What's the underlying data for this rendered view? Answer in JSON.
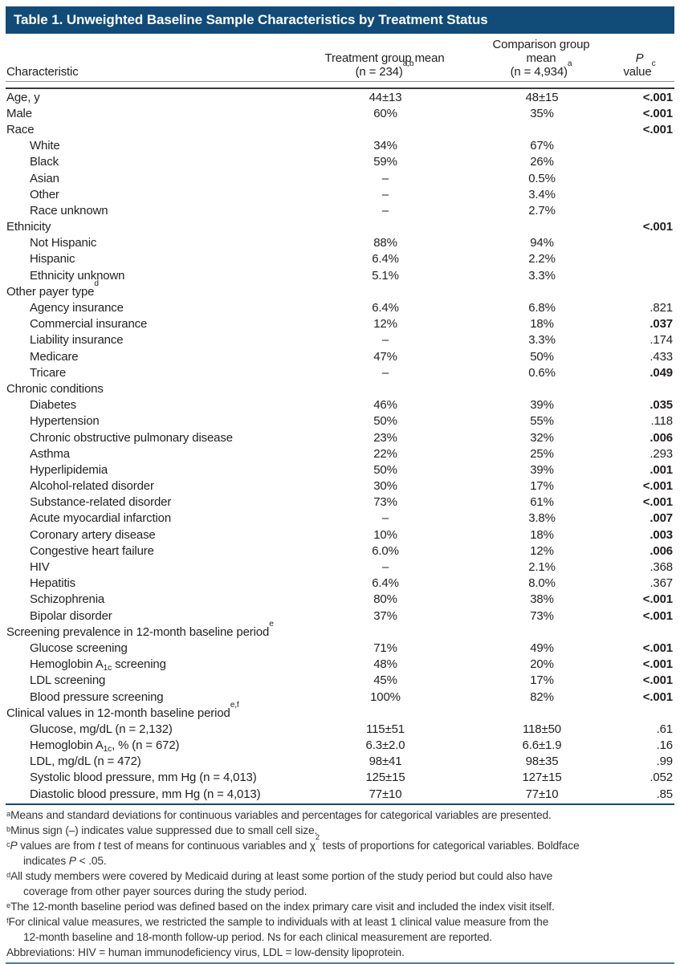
{
  "title": "Table 1. Unweighted Baseline Sample Characteristics by Treatment Status",
  "colors": {
    "header_bg": "#114b78",
    "title_text": "#ffffff",
    "rule_dark": "#3a3a3a",
    "rule_navy": "#114b78",
    "rule_steel_blue": "#4d7ea8",
    "body_text": "#231f20"
  },
  "header": {
    "characteristic": "Characteristic",
    "t1": "Treatment group mean",
    "t2": "(n = 234)",
    "t2sup": "a,b",
    "c1": "Comparison group mean",
    "c2": "(n = 4,934)",
    "c2sup": "a",
    "p1": "P",
    "p2": "value",
    "p2sup": "c"
  },
  "table": {
    "rows": [
      {
        "label": "Age, y",
        "t": "44±13",
        "c": "48±15",
        "p": "<.001",
        "pb": true
      },
      {
        "label": "Male",
        "t": "60%",
        "c": "35%",
        "p": "<.001",
        "pb": true
      },
      {
        "label": "Race",
        "p": "<.001",
        "pb": true
      },
      {
        "label": "White",
        "indent": true,
        "t": "34%",
        "c": "67%"
      },
      {
        "label": "Black",
        "indent": true,
        "t": "59%",
        "c": "26%"
      },
      {
        "label": "Asian",
        "indent": true,
        "t": "–",
        "c": "0.5%"
      },
      {
        "label": "Other",
        "indent": true,
        "t": "–",
        "c": "3.4%"
      },
      {
        "label": "Race unknown",
        "indent": true,
        "t": "–",
        "c": "2.7%"
      },
      {
        "label": "Ethnicity",
        "p": "<.001",
        "pb": true
      },
      {
        "label": "Not Hispanic",
        "indent": true,
        "t": "88%",
        "c": "94%"
      },
      {
        "label": "Hispanic",
        "indent": true,
        "t": "6.4%",
        "c": "2.2%"
      },
      {
        "label": "Ethnicity unknown",
        "indent": true,
        "t": "5.1%",
        "c": "3.3%"
      },
      {
        "label": "Other payer type",
        "sup": "d"
      },
      {
        "label": "Agency insurance",
        "indent": true,
        "t": "6.4%",
        "c": "6.8%",
        "p": ".821"
      },
      {
        "label": "Commercial insurance",
        "indent": true,
        "t": "12%",
        "c": "18%",
        "p": ".037",
        "pb": true
      },
      {
        "label": "Liability insurance",
        "indent": true,
        "t": "–",
        "c": "3.3%",
        "p": ".174"
      },
      {
        "label": "Medicare",
        "indent": true,
        "t": "47%",
        "c": "50%",
        "p": ".433"
      },
      {
        "label": "Tricare",
        "indent": true,
        "t": "–",
        "c": "0.6%",
        "p": ".049",
        "pb": true
      },
      {
        "label": "Chronic conditions"
      },
      {
        "label": "Diabetes",
        "indent": true,
        "t": "46%",
        "c": "39%",
        "p": ".035",
        "pb": true
      },
      {
        "label": "Hypertension",
        "indent": true,
        "t": "50%",
        "c": "55%",
        "p": ".118"
      },
      {
        "label": "Chronic obstructive pulmonary disease",
        "indent": true,
        "t": "23%",
        "c": "32%",
        "p": ".006",
        "pb": true
      },
      {
        "label": "Asthma",
        "indent": true,
        "t": "22%",
        "c": "25%",
        "p": ".293"
      },
      {
        "label": "Hyperlipidemia",
        "indent": true,
        "t": "50%",
        "c": "39%",
        "p": ".001",
        "pb": true
      },
      {
        "label": "Alcohol-related disorder",
        "indent": true,
        "t": "30%",
        "c": "17%",
        "p": "<.001",
        "pb": true
      },
      {
        "label": "Substance-related disorder",
        "indent": true,
        "t": "73%",
        "c": "61%",
        "p": "<.001",
        "pb": true
      },
      {
        "label": "Acute myocardial infarction",
        "indent": true,
        "t": "–",
        "c": "3.8%",
        "p": ".007",
        "pb": true
      },
      {
        "label": "Coronary artery disease",
        "indent": true,
        "t": "10%",
        "c": "18%",
        "p": ".003",
        "pb": true
      },
      {
        "label": "Congestive heart failure",
        "indent": true,
        "t": "6.0%",
        "c": "12%",
        "p": ".006",
        "pb": true
      },
      {
        "label": "HIV",
        "indent": true,
        "t": "–",
        "c": "2.1%",
        "p": ".368"
      },
      {
        "label": "Hepatitis",
        "indent": true,
        "t": "6.4%",
        "c": "8.0%",
        "p": ".367"
      },
      {
        "label": "Schizophrenia",
        "indent": true,
        "t": "80%",
        "c": "38%",
        "p": "<.001",
        "pb": true
      },
      {
        "label": "Bipolar disorder",
        "indent": true,
        "t": "37%",
        "c": "73%",
        "p": "<.001",
        "pb": true
      },
      {
        "label": "Screening prevalence in 12-month baseline period",
        "sup": "e"
      },
      {
        "label": "Glucose screening",
        "indent": true,
        "t": "71%",
        "c": "49%",
        "p": "<.001",
        "pb": true
      },
      {
        "label": "Hemoglobin A",
        "sub": "1c",
        "rest": " screening",
        "indent": true,
        "t": "48%",
        "c": "20%",
        "p": "<.001",
        "pb": true
      },
      {
        "label": "LDL screening",
        "indent": true,
        "t": "45%",
        "c": "17%",
        "p": "<.001",
        "pb": true
      },
      {
        "label": "Blood pressure screening",
        "indent": true,
        "t": "100%",
        "c": "82%",
        "p": "<.001",
        "pb": true
      },
      {
        "label": "Clinical values in 12-month baseline period",
        "sup": "e,f"
      },
      {
        "label": "Glucose, mg/dL (n = 2,132)",
        "indent": true,
        "t": "115±51",
        "c": "118±50",
        "p": ".61"
      },
      {
        "label": "Hemoglobin A",
        "sub": "1c",
        "rest": ", % (n = 672)",
        "indent": true,
        "t": "6.3±2.0",
        "c": "6.6±1.9",
        "p": ".16"
      },
      {
        "label": "LDL, mg/dL (n = 472)",
        "indent": true,
        "t": "98±41",
        "c": "98±35",
        "p": ".99"
      },
      {
        "label": "Systolic blood pressure, mm Hg (n = 4,013)",
        "indent": true,
        "t": "125±15",
        "c": "127±15",
        "p": ".052"
      },
      {
        "label": "Diastolic blood pressure, mm Hg (n = 4,013)",
        "indent": true,
        "t": "77±10",
        "c": "77±10",
        "p": ".85"
      }
    ]
  },
  "footnotes": [
    {
      "sup": "a",
      "lines": [
        [
          {
            "t": "Means and standard deviations for continuous variables and percentages for categorical variables are presented."
          }
        ]
      ]
    },
    {
      "sup": "b",
      "lines": [
        [
          {
            "t": "Minus sign (–) indicates value suppressed due to small cell size."
          }
        ]
      ]
    },
    {
      "sup": "c",
      "lines": [
        [
          {
            "t": "P",
            "i": true
          },
          {
            "t": " values are from "
          },
          {
            "t": "t",
            "i": true
          },
          {
            "t": " test of means for continuous variables and χ"
          },
          {
            "t": "2",
            "sup": true
          },
          {
            "t": " tests of proportions for categorical variables. Boldface"
          }
        ],
        [
          {
            "t": "indicates "
          },
          {
            "t": "P",
            "i": true
          },
          {
            "t": " < .05."
          }
        ]
      ]
    },
    {
      "sup": "d",
      "lines": [
        [
          {
            "t": "All study members were covered by Medicaid during at least some portion of the study period but could also have"
          }
        ],
        [
          {
            "t": "coverage from other payer sources during the study period."
          }
        ]
      ]
    },
    {
      "sup": "e",
      "lines": [
        [
          {
            "t": "The 12-month baseline period was defined based on the index primary care visit and included the index visit itself."
          }
        ]
      ]
    },
    {
      "sup": "f",
      "lines": [
        [
          {
            "t": "For clinical value measures, we restricted the sample to individuals with at least 1 clinical value measure from the"
          }
        ],
        [
          {
            "t": "12-month baseline and 18-month follow-up period. Ns for each clinical measurement are reported."
          }
        ]
      ]
    },
    {
      "sup": "",
      "lines": [
        [
          {
            "t": "Abbreviations: HIV = human immunodeficiency virus, LDL = low-density lipoprotein."
          }
        ]
      ]
    }
  ]
}
